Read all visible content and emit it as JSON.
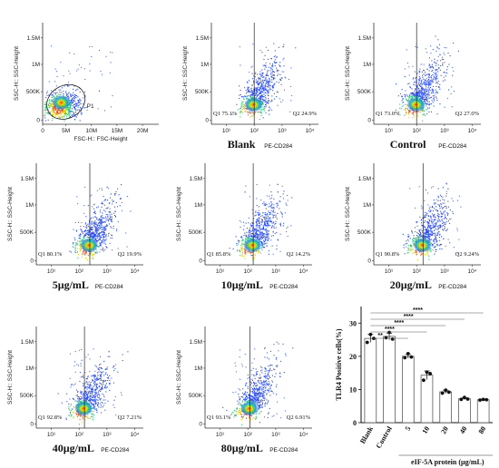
{
  "panels": [
    {
      "id": "p1",
      "type": "scatter",
      "ylabel": "SSC-H:: SSC-Height",
      "xlabel": "FSC-H:: FSC-Height",
      "yticks": [
        "1.5M",
        "1M",
        "500K",
        "0"
      ],
      "xticks": [
        "0",
        "5M",
        "10M",
        "15M",
        "20M"
      ],
      "gate_label": "P1",
      "q1": "",
      "q2": "",
      "caption": "",
      "caption_sub": ""
    },
    {
      "id": "blank",
      "type": "scatter",
      "ylabel": "SSC-H:: SSC-Height",
      "xlabel": "",
      "yticks": [
        "1.5M",
        "1M",
        "500K",
        "0"
      ],
      "xticks": [
        "10¹",
        "10²",
        "10³",
        "10⁴"
      ],
      "gate_label": "",
      "q1": "Q1 75.1%",
      "q2": "Q2 24.9%",
      "caption": "Blank",
      "caption_sub": "PE-CD284"
    },
    {
      "id": "control",
      "type": "scatter",
      "ylabel": "SSC-H:: SSC-Height",
      "xlabel": "",
      "yticks": [
        "1.5M",
        "1M",
        "500K",
        "0"
      ],
      "xticks": [
        "10¹",
        "10²",
        "10³",
        "10⁴"
      ],
      "gate_label": "",
      "q1": "Q1 73.0%",
      "q2": "Q2 27.0%",
      "caption": "Control",
      "caption_sub": "PE-CD284"
    },
    {
      "id": "c5",
      "type": "scatter",
      "ylabel": "SSC-H:: SSC-Height",
      "xlabel": "",
      "yticks": [
        "1.5M",
        "1M",
        "500K",
        "0"
      ],
      "xticks": [
        "10¹",
        "10²",
        "10³",
        "10⁴"
      ],
      "gate_label": "",
      "q1": "Q1 80.1%",
      "q2": "Q2 19.9%",
      "caption": "5µg/mL",
      "caption_sub": "PE-CD284"
    },
    {
      "id": "c10",
      "type": "scatter",
      "ylabel": "SSC-H:: SSC-Height",
      "xlabel": "",
      "yticks": [
        "1.5M",
        "1M",
        "500K",
        "0"
      ],
      "xticks": [
        "10¹",
        "10²",
        "10³",
        "10⁴"
      ],
      "gate_label": "",
      "q1": "Q1 85.8%",
      "q2": "Q2 14.2%",
      "caption": "10µg/mL",
      "caption_sub": "PE-CD284"
    },
    {
      "id": "c20",
      "type": "scatter",
      "ylabel": "SSC-H:: SSC-Height",
      "xlabel": "",
      "yticks": [
        "1.5M",
        "1M",
        "500K",
        "0"
      ],
      "xticks": [
        "10¹",
        "10²",
        "10³",
        "10⁴"
      ],
      "gate_label": "",
      "q1": "Q1 90.8%",
      "q2": "Q2 9.24%",
      "caption": "20µg/mL",
      "caption_sub": "PE-CD284"
    },
    {
      "id": "c40",
      "type": "scatter",
      "ylabel": "SSC-H:: SSC-Height",
      "xlabel": "",
      "yticks": [
        "1.5M",
        "1M",
        "500K",
        "0"
      ],
      "xticks": [
        "10¹",
        "10²",
        "10³",
        "10⁴"
      ],
      "gate_label": "",
      "q1": "Q1 92.8%",
      "q2": "Q2 7.21%",
      "caption": "40µg/mL",
      "caption_sub": "PE-CD284"
    },
    {
      "id": "c80",
      "type": "scatter",
      "ylabel": "SSC-H:: SSC-Height",
      "xlabel": "",
      "yticks": [
        "1.5M",
        "1M",
        "500K",
        "0"
      ],
      "xticks": [
        "10¹",
        "10²",
        "10³",
        "10⁴"
      ],
      "gate_label": "",
      "q1": "Q1 93.1%",
      "q2": "Q2 6.91%",
      "caption": "80µg/mL",
      "caption_sub": "PE-CD284"
    }
  ],
  "chart_data": {
    "type": "bar",
    "ylabel": "TLR4 Positive cells(%)",
    "xlabel": "eIF-5A protein (µg/mL)",
    "categories": [
      "Blank",
      "Control",
      "5",
      "10",
      "20",
      "40",
      "80"
    ],
    "values": [
      25.4,
      26.0,
      20.0,
      14.3,
      9.3,
      7.2,
      6.9
    ],
    "points": [
      [
        24.2,
        26.6,
        25.4
      ],
      [
        25.6,
        27.2,
        25.2
      ],
      [
        19.6,
        20.8,
        19.8
      ],
      [
        12.8,
        15.2,
        14.8
      ],
      [
        8.9,
        9.8,
        9.2
      ],
      [
        7.0,
        7.6,
        7.1
      ],
      [
        6.8,
        7.0,
        6.9
      ]
    ],
    "errors": [
      1.2,
      1.0,
      0.6,
      1.3,
      0.5,
      0.3,
      0.2
    ],
    "ylim": [
      0,
      35
    ],
    "yticks": [
      "0",
      "10",
      "20",
      "30"
    ],
    "significance": [
      {
        "label": "**",
        "compare": "Blank vs 5"
      },
      {
        "label": "****",
        "compare": "Blank vs 10"
      },
      {
        "label": "****",
        "compare": "Blank vs 20"
      },
      {
        "label": "****",
        "compare": "Blank vs 40"
      },
      {
        "label": "****",
        "compare": "Blank vs 80"
      }
    ]
  }
}
